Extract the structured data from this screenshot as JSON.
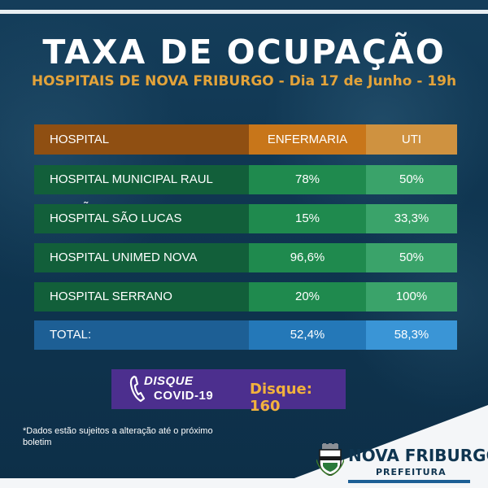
{
  "header": {
    "title": "TAXA DE OCUPAÇÃO",
    "subtitle": "HOSPITAIS DE NOVA FRIBURGO - Dia 17 de Junho - 19h"
  },
  "table": {
    "columns": [
      "HOSPITAL",
      "ENFERMARIA",
      "UTI"
    ],
    "rows": [
      {
        "hospital": "HOSPITAL MUNICIPAL RAUL SERTÃ",
        "enfermaria": "78%",
        "uti": "50%"
      },
      {
        "hospital": "HOSPITAL SÃO LUCAS",
        "enfermaria": "15%",
        "uti": "33,3%"
      },
      {
        "hospital": "HOSPITAL UNIMED NOVA FRIBURGO",
        "enfermaria": "96,6%",
        "uti": "50%"
      },
      {
        "hospital": "HOSPITAL SERRANO",
        "enfermaria": "20%",
        "uti": "100%"
      }
    ],
    "total": {
      "label": "TOTAL:",
      "enfermaria": "52,4%",
      "uti": "58,3%"
    }
  },
  "hotline": {
    "label_line1": "DISQUE",
    "label_line2": "COVID-19",
    "number": "Disque: 160",
    "icon": "phone-icon"
  },
  "footer": {
    "note": "*Dados estão sujeitos a alteração até o próximo boletim",
    "brand_name": "NOVA FRIBURGO",
    "brand_sub": "PREFEITURA",
    "crest_icon": "city-crest-icon"
  },
  "colors": {
    "background": "#0f3550",
    "accent_orange": "#e3a33a",
    "row_green": "#1f8a4e",
    "total_blue": "#2478b8",
    "hotline_purple": "#4c2f8e"
  }
}
